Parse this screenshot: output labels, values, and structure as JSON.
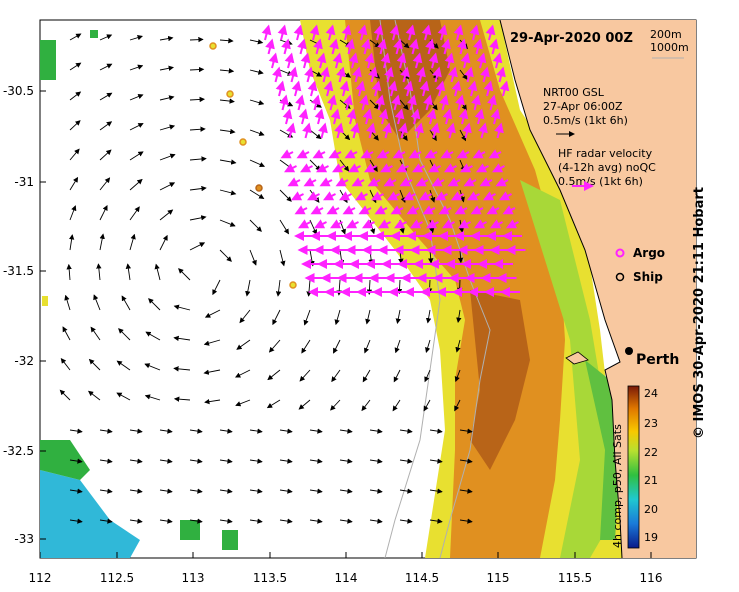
{
  "header": {
    "date": "29-Apr-2020 00Z"
  },
  "depth_key": {
    "line1": "200m",
    "line2": "1000m"
  },
  "legend": {
    "model_title": "NRT00 GSL",
    "model_time": "27-Apr 06:00Z",
    "model_scale": "0.5m/s (1kt 6h)",
    "radar_title": "HF radar velocity",
    "radar_sub": "(4-12h avg) noQC",
    "radar_scale": "0.5m/s (1kt 6h)",
    "argo_label": "Argo",
    "ship_label": "Ship"
  },
  "place": {
    "perth": "Perth"
  },
  "colorbar": {
    "ticks": [
      "24",
      "23",
      "22",
      "21",
      "20",
      "19"
    ],
    "caption": "4h comp, p50, All Sats"
  },
  "credit": "© IMOS 30-Apr-2020 21:11 Hobart",
  "axes": {
    "x_ticks": [
      "112",
      "112.5",
      "113",
      "113.5",
      "114",
      "114.5",
      "115",
      "115.5",
      "116"
    ],
    "y_ticks": [
      "-30.5",
      "-31",
      "-31.5",
      "-32",
      "-32.5",
      "-33"
    ],
    "x_range": [
      112,
      116.3
    ],
    "y_range": [
      -33.1,
      -30.0
    ]
  },
  "colors": {
    "land": "#f8c8a0",
    "radar_vectors": "#ff22ff",
    "model_vectors": "#000000",
    "argo": "#ff22ff",
    "ship": "#000000"
  }
}
